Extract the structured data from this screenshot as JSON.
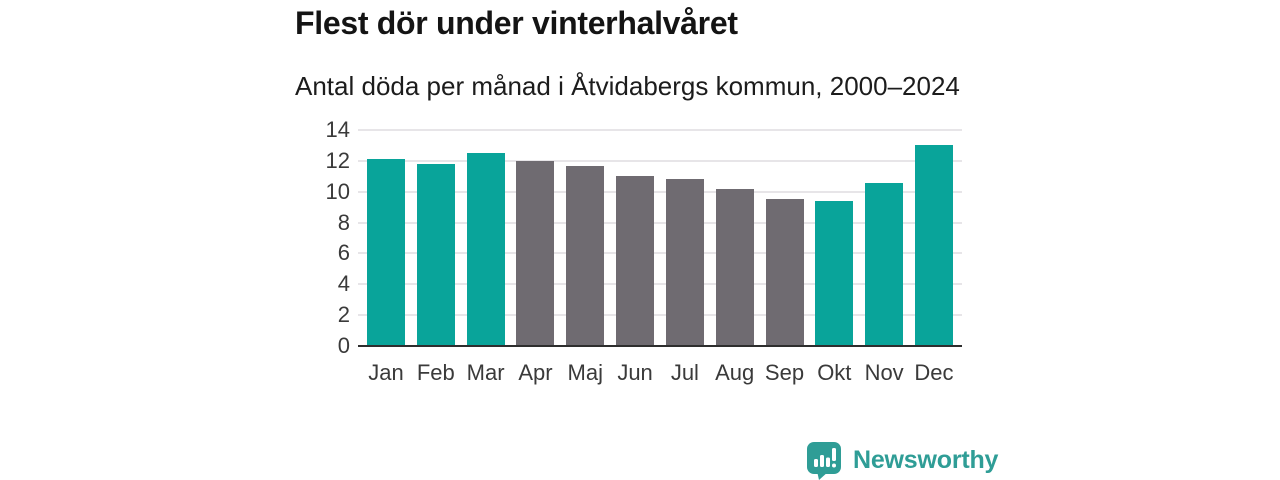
{
  "header": {
    "title": "Flest dör under vinterhalvåret",
    "subtitle": "Antal döda per månad i Åtvidabergs kommun, 2000–2024"
  },
  "chart_data": {
    "type": "bar",
    "title": "Flest dör under vinterhalvåret",
    "subtitle": "Antal döda per månad i Åtvidabergs kommun, 2000–2024",
    "categories": [
      "Jan",
      "Feb",
      "Mar",
      "Apr",
      "Maj",
      "Jun",
      "Jul",
      "Aug",
      "Sep",
      "Okt",
      "Nov",
      "Dec"
    ],
    "values": [
      12.1,
      11.8,
      12.5,
      12.0,
      11.65,
      11.05,
      10.8,
      10.2,
      9.55,
      9.4,
      10.55,
      13.0
    ],
    "bar_groups": [
      "winter",
      "winter",
      "winter",
      "summer",
      "summer",
      "summer",
      "summer",
      "summer",
      "summer",
      "winter",
      "winter",
      "winter"
    ],
    "colors": {
      "winter": "#09a49a",
      "summer": "#6f6b71"
    },
    "xlabel": "",
    "ylabel": "",
    "ylim": [
      0,
      14
    ],
    "yticks": [
      0,
      2,
      4,
      6,
      8,
      10,
      12,
      14
    ],
    "grid": "horizontal-light",
    "legend": "none"
  },
  "footer": {
    "brand": "Newsworthy",
    "brand_color": "#2f9d96",
    "logo_icon": "speech-bubble-bar-chart-icon"
  }
}
